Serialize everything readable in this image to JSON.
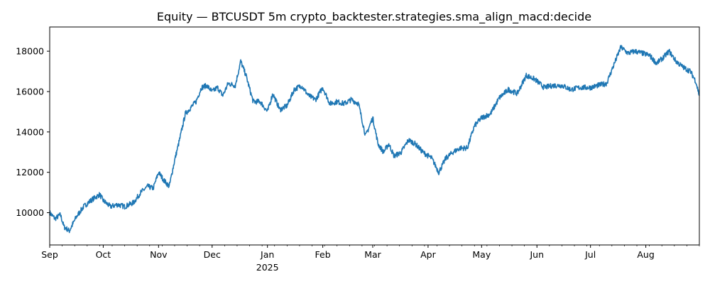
{
  "chart_data": {
    "type": "line",
    "title": "Equity — BTCUSDT 5m crypto_backtester.strategies.sma_align_macd:decide",
    "xlabel": "",
    "ylabel": "",
    "x_range": [
      "2024-09-01",
      "2025-08-31"
    ],
    "ylim": [
      8400,
      19200
    ],
    "y_ticks": [
      10000,
      12000,
      14000,
      16000,
      18000
    ],
    "y_tick_labels": [
      "10000",
      "12000",
      "14000",
      "16000",
      "18000"
    ],
    "x_ticks": [
      {
        "date": "2024-09-01",
        "label": "Sep"
      },
      {
        "date": "2024-10-01",
        "label": "Oct"
      },
      {
        "date": "2024-11-01",
        "label": "Nov"
      },
      {
        "date": "2024-12-01",
        "label": "Dec"
      },
      {
        "date": "2025-01-01",
        "label": "Jan",
        "sublabel": "2025"
      },
      {
        "date": "2025-02-01",
        "label": "Feb"
      },
      {
        "date": "2025-03-01",
        "label": "Mar"
      },
      {
        "date": "2025-04-01",
        "label": "Apr"
      },
      {
        "date": "2025-05-01",
        "label": "May"
      },
      {
        "date": "2025-06-01",
        "label": "Jun"
      },
      {
        "date": "2025-07-01",
        "label": "Jul"
      },
      {
        "date": "2025-08-01",
        "label": "Aug"
      }
    ],
    "grid": false,
    "legend": "none",
    "series": [
      {
        "color": "#1f77b4",
        "x": [
          "2024-09-01",
          "2024-09-04",
          "2024-09-07",
          "2024-09-09",
          "2024-09-12",
          "2024-09-16",
          "2024-09-20",
          "2024-09-24",
          "2024-09-29",
          "2024-10-01",
          "2024-10-05",
          "2024-10-09",
          "2024-10-13",
          "2024-10-18",
          "2024-10-22",
          "2024-10-26",
          "2024-10-29",
          "2024-11-01",
          "2024-11-04",
          "2024-11-07",
          "2024-11-10",
          "2024-11-13",
          "2024-11-16",
          "2024-11-19",
          "2024-11-22",
          "2024-11-25",
          "2024-11-28",
          "2024-12-01",
          "2024-12-04",
          "2024-12-07",
          "2024-12-10",
          "2024-12-14",
          "2024-12-17",
          "2024-12-20",
          "2024-12-24",
          "2024-12-28",
          "2025-01-01",
          "2025-01-04",
          "2025-01-08",
          "2025-01-12",
          "2025-01-16",
          "2025-01-20",
          "2025-01-24",
          "2025-01-28",
          "2025-02-01",
          "2025-02-05",
          "2025-02-09",
          "2025-02-13",
          "2025-02-17",
          "2025-02-21",
          "2025-02-25",
          "2025-03-01",
          "2025-03-04",
          "2025-03-07",
          "2025-03-10",
          "2025-03-13",
          "2025-03-17",
          "2025-03-21",
          "2025-03-25",
          "2025-03-29",
          "2025-04-03",
          "2025-04-07",
          "2025-04-11",
          "2025-04-15",
          "2025-04-19",
          "2025-04-23",
          "2025-04-27",
          "2025-05-01",
          "2025-05-06",
          "2025-05-11",
          "2025-05-16",
          "2025-05-21",
          "2025-05-26",
          "2025-05-31",
          "2025-06-05",
          "2025-06-10",
          "2025-06-15",
          "2025-06-20",
          "2025-06-25",
          "2025-07-01",
          "2025-07-05",
          "2025-07-10",
          "2025-07-14",
          "2025-07-18",
          "2025-07-22",
          "2025-07-26",
          "2025-07-30",
          "2025-08-03",
          "2025-08-07",
          "2025-08-11",
          "2025-08-14",
          "2025-08-18",
          "2025-08-22",
          "2025-08-26",
          "2025-08-29",
          "2025-08-31"
        ],
        "y": [
          10000,
          9700,
          9900,
          9300,
          9100,
          9800,
          10300,
          10600,
          10900,
          10600,
          10300,
          10400,
          10300,
          10500,
          11000,
          11300,
          11200,
          12000,
          11600,
          11300,
          12600,
          13700,
          14900,
          15200,
          15500,
          16200,
          16300,
          16000,
          16200,
          15800,
          16400,
          16300,
          17500,
          16800,
          15500,
          15500,
          15000,
          15900,
          15100,
          15300,
          16100,
          16300,
          15800,
          15600,
          16200,
          15400,
          15500,
          15400,
          15600,
          15400,
          13800,
          14700,
          13400,
          13000,
          13400,
          12800,
          13000,
          13600,
          13400,
          13000,
          12700,
          12000,
          12700,
          13000,
          13200,
          13200,
          14300,
          14700,
          14900,
          15700,
          16100,
          15900,
          16800,
          16600,
          16200,
          16300,
          16300,
          16100,
          16200,
          16200,
          16300,
          16400,
          17300,
          18200,
          17900,
          18000,
          17900,
          17800,
          17400,
          17700,
          18000,
          17500,
          17200,
          17000,
          16500,
          15800
        ]
      }
    ]
  }
}
